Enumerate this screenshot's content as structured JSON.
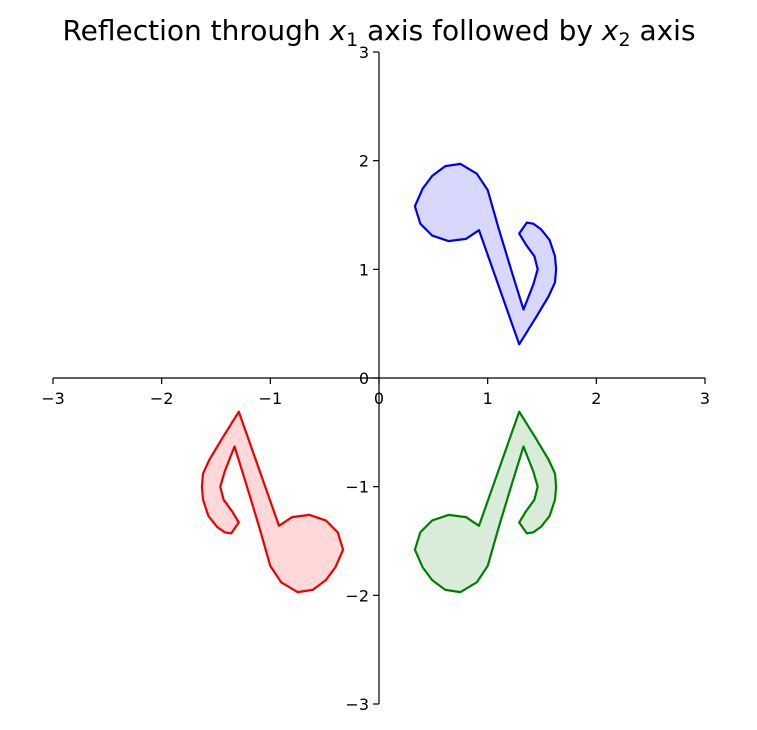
{
  "chart_data": {
    "type": "area",
    "title": {
      "prefix": "Reflection through ",
      "var1": "x",
      "sub1": "1",
      "middle": " axis followed by ",
      "var2": "x",
      "sub2": "2",
      "suffix": " axis"
    },
    "xlim": [
      -3,
      3
    ],
    "ylim": [
      -3,
      3
    ],
    "xticks": [
      {
        "value": -3,
        "label": "−3"
      },
      {
        "value": -2,
        "label": "−2"
      },
      {
        "value": -1,
        "label": "−1"
      },
      {
        "value": 0,
        "label": "0"
      },
      {
        "value": 1,
        "label": "1"
      },
      {
        "value": 2,
        "label": "2"
      },
      {
        "value": 3,
        "label": "3"
      }
    ],
    "yticks": [
      {
        "value": -3,
        "label": "−3"
      },
      {
        "value": -2,
        "label": "−2"
      },
      {
        "value": -1,
        "label": "−1"
      },
      {
        "value": 0,
        "label": "0"
      },
      {
        "value": 1,
        "label": "1"
      },
      {
        "value": 2,
        "label": "2"
      },
      {
        "value": 3,
        "label": "3"
      }
    ],
    "grid": false,
    "axes_through_origin": true,
    "base_shape": [
      [
        1.29,
        0.31
      ],
      [
        1.44,
        0.55
      ],
      [
        1.56,
        0.75
      ],
      [
        1.62,
        0.88
      ],
      [
        1.63,
        1.0
      ],
      [
        1.62,
        1.12
      ],
      [
        1.57,
        1.27
      ],
      [
        1.49,
        1.37
      ],
      [
        1.42,
        1.42
      ],
      [
        1.36,
        1.43
      ],
      [
        1.29,
        1.33
      ],
      [
        1.35,
        1.23
      ],
      [
        1.43,
        1.12
      ],
      [
        1.46,
        1.0
      ],
      [
        1.42,
        0.86
      ],
      [
        1.33,
        0.63
      ],
      [
        1.23,
        0.95
      ],
      [
        1.1,
        1.38
      ],
      [
        1.0,
        1.73
      ],
      [
        0.9,
        1.88
      ],
      [
        0.75,
        1.97
      ],
      [
        0.61,
        1.95
      ],
      [
        0.49,
        1.86
      ],
      [
        0.4,
        1.74
      ],
      [
        0.33,
        1.58
      ],
      [
        0.38,
        1.42
      ],
      [
        0.49,
        1.31
      ],
      [
        0.64,
        1.26
      ],
      [
        0.8,
        1.28
      ],
      [
        0.92,
        1.36
      ]
    ],
    "series": [
      {
        "transform": [
          1,
          1
        ],
        "stroke": "#0000ee",
        "fill": "#d8d8ff"
      },
      {
        "transform": [
          1,
          -1
        ],
        "stroke": "#008000",
        "fill": "#d9ecd9"
      },
      {
        "transform": [
          -1,
          -1
        ],
        "stroke": "#ee0000",
        "fill": "#ffd9d9"
      }
    ]
  }
}
